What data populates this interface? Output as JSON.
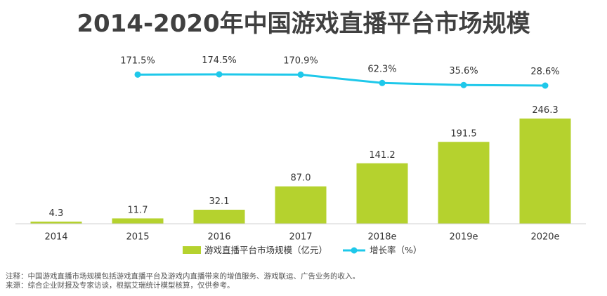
{
  "title": "2014-2020年中国游戏直播平台市场规模",
  "chart_data": {
    "type": "bar",
    "categories": [
      "2014",
      "2015",
      "2016",
      "2017",
      "2018e",
      "2019e",
      "2020e"
    ],
    "series": [
      {
        "name": "游戏直播平台市场规模（亿元）",
        "type": "bar",
        "values": [
          4.3,
          11.7,
          32.1,
          87.0,
          141.2,
          191.5,
          246.3
        ],
        "labels": [
          "4.3",
          "11.7",
          "32.1",
          "87.0",
          "141.2",
          "191.5",
          "246.3"
        ],
        "color": "#b5d22e"
      },
      {
        "name": "增长率（%）",
        "type": "line",
        "values": [
          null,
          171.5,
          174.5,
          170.9,
          62.3,
          35.6,
          28.6
        ],
        "labels": [
          "",
          "171.5%",
          "174.5%",
          "170.9%",
          "62.3%",
          "35.6%",
          "28.6%"
        ],
        "color": "#1ec8ea"
      }
    ],
    "legend": [
      "游戏直播平台市场规模（亿元）",
      "增长率（%）"
    ],
    "legend_position": "bottom",
    "grid": false
  },
  "notes": {
    "note": "注释：中国游戏直播市场规模包括游戏直播平台及游戏内直播带来的增值服务、游戏联运、广告业务的收入。",
    "source": "来源：综合企业财报及专家访谈，根据艾瑞统计模型核算，仅供参考。"
  }
}
